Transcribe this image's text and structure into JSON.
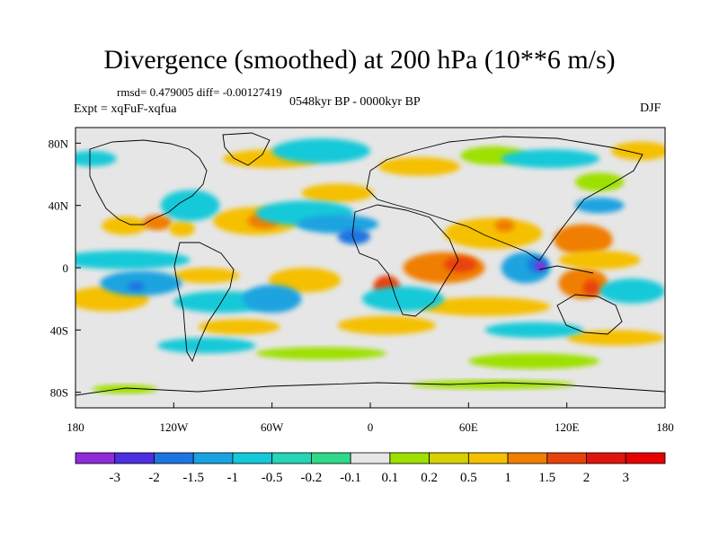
{
  "title": "Divergence (smoothed) at 200 hPa (10**6 m/s)",
  "stats": "rmsd= 0.479005  diff= -0.00127419",
  "experiment": "Expt = xqFuF-xqfua",
  "period": "0548kyr BP - 0000kyr BP",
  "season": "DJF",
  "map": {
    "lon_ticks": [
      "180",
      "120W",
      "60W",
      "0",
      "60E",
      "120E",
      "180"
    ],
    "lat_ticks": [
      "80N",
      "40N",
      "0",
      "40S",
      "80S"
    ],
    "land_color": "#000000",
    "blobs": [
      {
        "lon": -150,
        "lat": 27,
        "rx": 14,
        "ry": 6,
        "color": "#f5c000"
      },
      {
        "lon": -130,
        "lat": 29,
        "rx": 9,
        "ry": 5,
        "color": "#f07e00"
      },
      {
        "lon": -115,
        "lat": 25,
        "rx": 8,
        "ry": 5,
        "color": "#f5c000"
      },
      {
        "lon": -70,
        "lat": 30,
        "rx": 26,
        "ry": 9,
        "color": "#f5c000"
      },
      {
        "lon": -65,
        "lat": 30,
        "rx": 10,
        "ry": 5,
        "color": "#f07e00"
      },
      {
        "lon": -20,
        "lat": 48,
        "rx": 22,
        "ry": 6,
        "color": "#f5c000"
      },
      {
        "lon": -60,
        "lat": 70,
        "rx": 30,
        "ry": 6,
        "color": "#f5c000"
      },
      {
        "lon": 30,
        "lat": 65,
        "rx": 25,
        "ry": 6,
        "color": "#f5c000"
      },
      {
        "lon": 75,
        "lat": 72,
        "rx": 20,
        "ry": 6,
        "color": "#9ee000"
      },
      {
        "lon": 165,
        "lat": 75,
        "rx": 18,
        "ry": 6,
        "color": "#f5c000"
      },
      {
        "lon": 140,
        "lat": 55,
        "rx": 15,
        "ry": 6,
        "color": "#9ee000"
      },
      {
        "lon": 75,
        "lat": 22,
        "rx": 30,
        "ry": 10,
        "color": "#f5c000"
      },
      {
        "lon": 82,
        "lat": 27,
        "rx": 6,
        "ry": 4,
        "color": "#f07e00"
      },
      {
        "lon": 130,
        "lat": 18,
        "rx": 18,
        "ry": 10,
        "color": "#f07e00"
      },
      {
        "lon": 45,
        "lat": 0,
        "rx": 25,
        "ry": 10,
        "color": "#f07e00"
      },
      {
        "lon": 55,
        "lat": 2,
        "rx": 10,
        "ry": 5,
        "color": "#e8420c"
      },
      {
        "lon": 10,
        "lat": -12,
        "rx": 8,
        "ry": 7,
        "color": "#e8420c"
      },
      {
        "lon": -40,
        "lat": -8,
        "rx": 22,
        "ry": 8,
        "color": "#f5c000"
      },
      {
        "lon": -100,
        "lat": -5,
        "rx": 20,
        "ry": 5,
        "color": "#f5c000"
      },
      {
        "lon": -160,
        "lat": -20,
        "rx": 25,
        "ry": 8,
        "color": "#f5c000"
      },
      {
        "lon": 130,
        "lat": -10,
        "rx": 15,
        "ry": 10,
        "color": "#f07e00"
      },
      {
        "lon": 135,
        "lat": -13,
        "rx": 5,
        "ry": 5,
        "color": "#e8420c"
      },
      {
        "lon": 140,
        "lat": 5,
        "rx": 25,
        "ry": 6,
        "color": "#f5c000"
      },
      {
        "lon": 70,
        "lat": -25,
        "rx": 40,
        "ry": 6,
        "color": "#f5c000"
      },
      {
        "lon": 10,
        "lat": -37,
        "rx": 30,
        "ry": 6,
        "color": "#f5c000"
      },
      {
        "lon": -80,
        "lat": -38,
        "rx": 25,
        "ry": 5,
        "color": "#f5c000"
      },
      {
        "lon": 150,
        "lat": -45,
        "rx": 30,
        "ry": 5,
        "color": "#f5c000"
      },
      {
        "lon": -30,
        "lat": -55,
        "rx": 40,
        "ry": 4,
        "color": "#9ee000"
      },
      {
        "lon": 100,
        "lat": -60,
        "rx": 40,
        "ry": 5,
        "color": "#9ee000"
      },
      {
        "lon": -150,
        "lat": -78,
        "rx": 20,
        "ry": 3,
        "color": "#9ee000"
      },
      {
        "lon": 75,
        "lat": -75,
        "rx": 50,
        "ry": 3,
        "color": "#9ee000"
      },
      {
        "lon": -110,
        "lat": 40,
        "rx": 18,
        "ry": 10,
        "color": "#14c9d8"
      },
      {
        "lon": -40,
        "lat": 35,
        "rx": 30,
        "ry": 8,
        "color": "#14c9d8"
      },
      {
        "lon": -20,
        "lat": 28,
        "rx": 25,
        "ry": 6,
        "color": "#1aa3e0"
      },
      {
        "lon": -10,
        "lat": 20,
        "rx": 10,
        "ry": 5,
        "color": "#1f74e0"
      },
      {
        "lon": -30,
        "lat": 75,
        "rx": 30,
        "ry": 8,
        "color": "#14c9d8"
      },
      {
        "lon": 110,
        "lat": 70,
        "rx": 30,
        "ry": 6,
        "color": "#14c9d8"
      },
      {
        "lon": -150,
        "lat": 5,
        "rx": 40,
        "ry": 6,
        "color": "#14c9d8"
      },
      {
        "lon": -140,
        "lat": -10,
        "rx": 25,
        "ry": 8,
        "color": "#1aa3e0"
      },
      {
        "lon": -143,
        "lat": -12,
        "rx": 5,
        "ry": 3,
        "color": "#1f74e0"
      },
      {
        "lon": -90,
        "lat": -22,
        "rx": 30,
        "ry": 7,
        "color": "#14c9d8"
      },
      {
        "lon": -60,
        "lat": -20,
        "rx": 18,
        "ry": 9,
        "color": "#1aa3e0"
      },
      {
        "lon": 20,
        "lat": -20,
        "rx": 25,
        "ry": 8,
        "color": "#14c9d8"
      },
      {
        "lon": 95,
        "lat": 0,
        "rx": 15,
        "ry": 10,
        "color": "#1aa3e0"
      },
      {
        "lon": 102,
        "lat": 2,
        "rx": 6,
        "ry": 5,
        "color": "#1f74e0"
      },
      {
        "lon": 104,
        "lat": 1,
        "rx": 3,
        "ry": 3,
        "color": "#8f2bd8"
      },
      {
        "lon": 160,
        "lat": -15,
        "rx": 20,
        "ry": 8,
        "color": "#14c9d8"
      },
      {
        "lon": 100,
        "lat": -40,
        "rx": 30,
        "ry": 5,
        "color": "#14c9d8"
      },
      {
        "lon": -100,
        "lat": -50,
        "rx": 30,
        "ry": 5,
        "color": "#14c9d8"
      },
      {
        "lon": 140,
        "lat": 40,
        "rx": 15,
        "ry": 5,
        "color": "#1aa3e0"
      },
      {
        "lon": -170,
        "lat": 70,
        "rx": 15,
        "ry": 5,
        "color": "#14c9d8"
      }
    ]
  },
  "colorbar": {
    "labels": [
      "-3",
      "-2",
      "-1.5",
      "-1",
      "-0.5",
      "-0.2",
      "-0.1",
      "0.1",
      "0.2",
      "0.5",
      "1",
      "1.5",
      "2",
      "3"
    ],
    "colors": [
      "#8f2bd8",
      "#4b2fe0",
      "#1f74e0",
      "#1aa3e0",
      "#14c9d8",
      "#26d4b8",
      "#2fd98a",
      "#e6e6e6",
      "#9ee000",
      "#d8d000",
      "#f5c000",
      "#f07e00",
      "#e8420c",
      "#e0140f",
      "#e60000"
    ]
  }
}
